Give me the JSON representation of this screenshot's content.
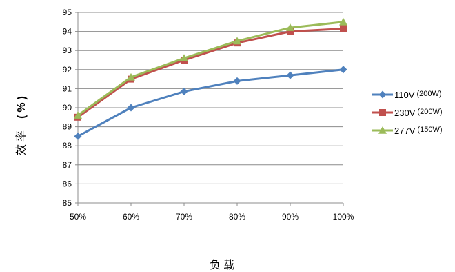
{
  "chart_data": {
    "type": "line",
    "categories": [
      "50%",
      "60%",
      "70%",
      "80%",
      "90%",
      "100%"
    ],
    "ylim": [
      85,
      95
    ],
    "yticks": [
      85,
      86,
      87,
      88,
      89,
      90,
      91,
      92,
      93,
      94,
      95
    ],
    "xlabel": "负载",
    "ylabel_cn": "效率",
    "ylabel_unit": "(%)",
    "grid": true,
    "legend_position": "right",
    "series": [
      {
        "name": "110V",
        "note": "(200W)",
        "color": "#4f81bd",
        "marker": "diamond",
        "values": [
          88.5,
          90.0,
          90.85,
          91.4,
          91.7,
          92.0
        ]
      },
      {
        "name": "230V",
        "note": "(200W)",
        "color": "#c0504d",
        "marker": "square",
        "values": [
          89.5,
          91.5,
          92.5,
          93.4,
          94.0,
          94.15
        ]
      },
      {
        "name": "277V",
        "note": "(150W)",
        "color": "#9bbb59",
        "marker": "triangle",
        "values": [
          89.6,
          91.6,
          92.6,
          93.5,
          94.2,
          94.5
        ]
      }
    ]
  }
}
